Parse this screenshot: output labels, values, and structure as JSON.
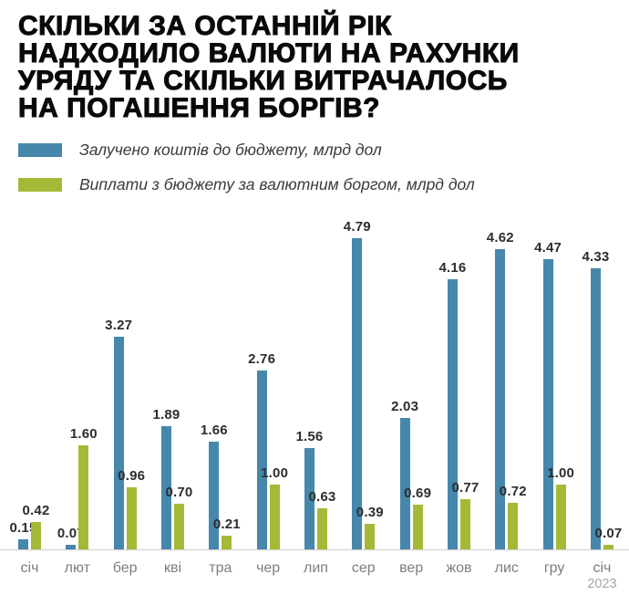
{
  "title": {
    "lines": [
      "СКІЛЬКИ ЗА ОСТАННІЙ РІК",
      "НАДХОДИЛО ВАЛЮТИ НА РАХУНКИ",
      "УРЯДУ ТА СКІЛЬКИ ВИТРАЧАЛОСЬ",
      "НА ПОГАШЕННЯ БОРГІВ?"
    ]
  },
  "legend": {
    "items": [
      {
        "label": "Залучено коштів до бюджету, млрд дол",
        "color": "#4687AC"
      },
      {
        "label": "Виплати з бюджету за валютним боргом, млрд дол",
        "color": "#A6B937"
      }
    ]
  },
  "chart_data": {
    "type": "bar",
    "title": "СКІЛЬКИ ЗА ОСТАННІЙ РІК НАДХОДИЛО ВАЛЮТИ НА РАХУНКИ УРЯДУ ТА СКІЛЬКИ ВИТРАЧАЛОСЬ НА ПОГАШЕННЯ БОРГІВ?",
    "categories": [
      "січ",
      "лют",
      "бер",
      "кві",
      "тра",
      "чер",
      "лип",
      "сер",
      "вер",
      "жов",
      "лис",
      "гру",
      "січ"
    ],
    "category_sublabels": [
      "",
      "",
      "",
      "",
      "",
      "",
      "",
      "",
      "",
      "",
      "",
      "",
      "2023"
    ],
    "series": [
      {
        "key": "inflows",
        "name": "Залучено коштів до бюджету, млрд дол",
        "color": "#4687AC",
        "values": [
          0.15,
          0.07,
          3.27,
          1.89,
          1.66,
          2.76,
          1.56,
          4.79,
          2.03,
          4.16,
          4.62,
          4.47,
          4.33
        ]
      },
      {
        "key": "payments",
        "name": "Виплати з бюджету за валютним боргом, млрд дол",
        "color": "#A6B937",
        "values": [
          0.42,
          1.6,
          0.96,
          0.7,
          0.21,
          1.0,
          0.63,
          0.39,
          0.69,
          0.77,
          0.72,
          1.0,
          0.07
        ]
      }
    ],
    "value_labels": true,
    "value_label_decimals": 2,
    "ylim": [
      0,
      5
    ],
    "grid": false,
    "legend_position": "top-left",
    "x_axis_line_color": "#cccccc"
  }
}
